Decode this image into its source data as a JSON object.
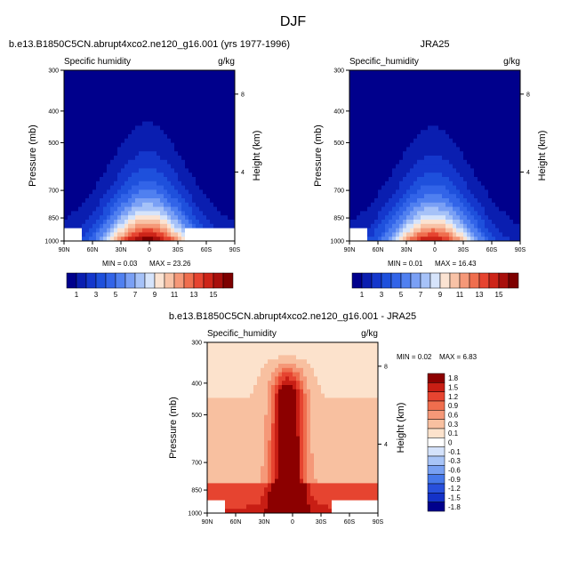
{
  "figure": {
    "title": "DJF"
  },
  "chart_data": [
    {
      "type": "heatmap",
      "panel": "model",
      "title": "b.e13.B1850C5CN.abrupt4xco2.ne120_g16.001 (yrs 1977-1996)",
      "variable": "Specific humidity",
      "units": "g/kg",
      "ylabel": "Pressure (mb)",
      "ylabel_right": "Height (km)",
      "x_ticks": [
        "90N",
        "60N",
        "30N",
        "0",
        "30S",
        "60S",
        "90S"
      ],
      "y_ticks": [
        "300",
        "400",
        "500",
        "700",
        "850",
        "1000"
      ],
      "y_right_ticks": [
        "8",
        "4"
      ],
      "min_label": "MIN =  0.03",
      "max_label": "MAX =  23.26",
      "min": 0.03,
      "max": 23.26,
      "peak_lat": 2,
      "colorbar": {
        "orientation": "horizontal",
        "tick_labels": [
          "1",
          "3",
          "5",
          "7",
          "9",
          "11",
          "13",
          "15"
        ],
        "levels": [
          0,
          1,
          2,
          3,
          4,
          5,
          6,
          7,
          8,
          9,
          10,
          11,
          12,
          13,
          14,
          15,
          16
        ]
      }
    },
    {
      "type": "heatmap",
      "panel": "obs",
      "title": "JRA25",
      "variable": "Specific_humidity",
      "units": "g/kg",
      "ylabel": "Pressure (mb)",
      "ylabel_right": "Height (km)",
      "x_ticks": [
        "90N",
        "60N",
        "30N",
        "0",
        "30S",
        "60S",
        "90S"
      ],
      "y_ticks": [
        "300",
        "400",
        "500",
        "700",
        "850",
        "1000"
      ],
      "y_right_ticks": [
        "8",
        "4"
      ],
      "min_label": "MIN =  0.01",
      "max_label": "MAX =  16.43",
      "min": 0.01,
      "max": 16.43,
      "peak_lat": 2,
      "colorbar": {
        "orientation": "horizontal",
        "tick_labels": [
          "1",
          "3",
          "5",
          "7",
          "9",
          "11",
          "13",
          "15"
        ],
        "levels": [
          0,
          1,
          2,
          3,
          4,
          5,
          6,
          7,
          8,
          9,
          10,
          11,
          12,
          13,
          14,
          15,
          16
        ]
      }
    },
    {
      "type": "heatmap",
      "panel": "difference",
      "title": "b.e13.B1850C5CN.abrupt4xco2.ne120_g16.001 - JRA25",
      "variable": "Specific_humidity",
      "units": "g/kg",
      "ylabel": "Pressure (mb)",
      "ylabel_right": "Height (km)",
      "x_ticks": [
        "90N",
        "60N",
        "30N",
        "0",
        "30S",
        "60S",
        "90S"
      ],
      "y_ticks": [
        "300",
        "400",
        "500",
        "700",
        "850",
        "1000"
      ],
      "y_right_ticks": [
        "8",
        "4"
      ],
      "min_label": "MIN =  0.02",
      "max_label": "MAX =  6.83",
      "min": 0.02,
      "max": 6.83,
      "colorbar": {
        "orientation": "vertical",
        "tick_labels": [
          "1.8",
          "1.5",
          "1.2",
          "0.9",
          "0.6",
          "0.3",
          "0.1",
          "0",
          "-0.1",
          "-0.3",
          "-0.6",
          "-0.9",
          "-1.2",
          "-1.5",
          "-1.8"
        ]
      }
    }
  ],
  "colors": {
    "sequential": [
      "#00008c",
      "#0a1eb0",
      "#1437cc",
      "#1e50dc",
      "#3264e8",
      "#5080f0",
      "#7aa0f5",
      "#a6c2f8",
      "#d6e4fb",
      "#fbe3d2",
      "#f8c2a6",
      "#f59878",
      "#ef6e4e",
      "#e64430",
      "#cd2418",
      "#a80f0c",
      "#7d0000"
    ],
    "diverging": [
      "#00008c",
      "#1432c8",
      "#2850dc",
      "#4678ea",
      "#78a0f2",
      "#a8c4f7",
      "#d4e2fb",
      "#ffffff",
      "#fce2cc",
      "#f8c0a0",
      "#f59878",
      "#ef6e4e",
      "#e64430",
      "#c81e14",
      "#8c0000"
    ]
  }
}
